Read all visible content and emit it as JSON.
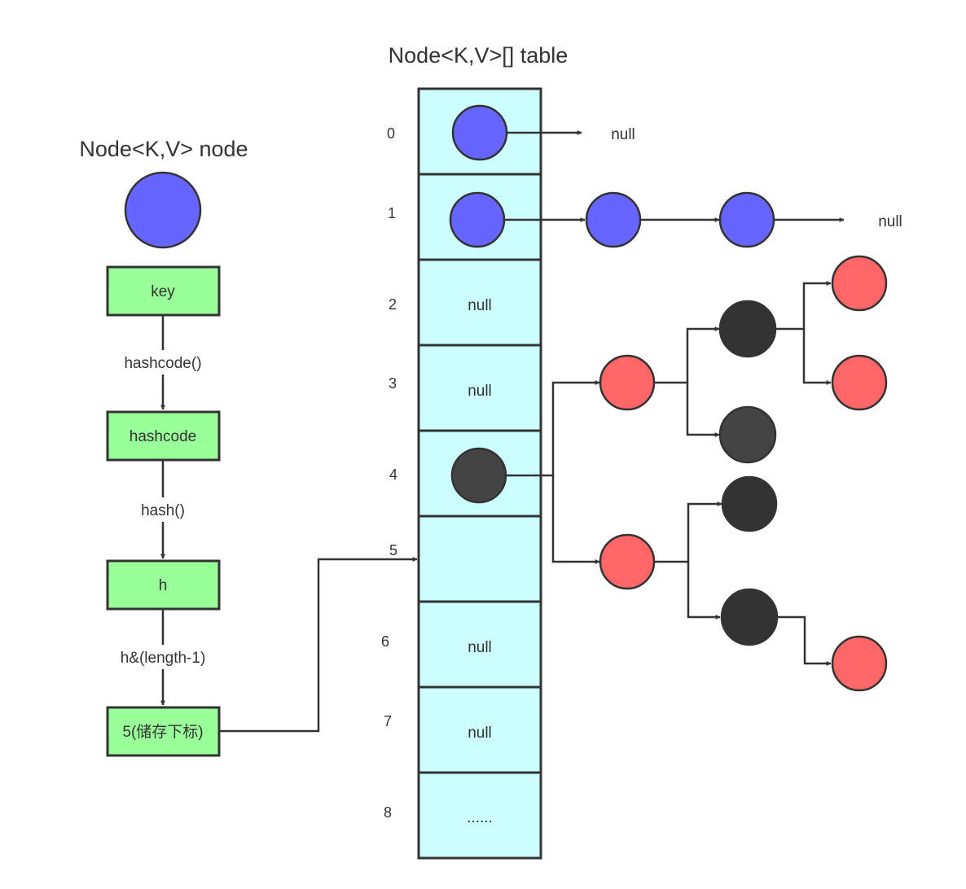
{
  "colors": {
    "blue_node": "#6666ff",
    "red_node": "#ff6666",
    "black_node": "#333333",
    "dark_node": "#444444",
    "green_box": "#99ff99",
    "table_cell": "#ccffff",
    "line": "#333333"
  },
  "left": {
    "title": "Node<K,V> node",
    "key_label": "key",
    "op_hashcode": "hashcode()",
    "hashcode_label": "hashcode",
    "op_hash": "hash()",
    "h_label": "h",
    "op_index": "h&(length-1)",
    "result_label": "5(储存下标)"
  },
  "table": {
    "title": "Node<K,V>[] table",
    "rows": [
      {
        "index": "0",
        "text": "",
        "node": "blue"
      },
      {
        "index": "1",
        "text": "",
        "node": "blue"
      },
      {
        "index": "2",
        "text": "null",
        "node": ""
      },
      {
        "index": "3",
        "text": "null",
        "node": ""
      },
      {
        "index": "4",
        "text": "",
        "node": "dark"
      },
      {
        "index": "5",
        "text": "",
        "node": ""
      },
      {
        "index": "6",
        "text": "null",
        "node": ""
      },
      {
        "index": "7",
        "text": "null",
        "node": ""
      },
      {
        "index": "8",
        "text": "......",
        "node": ""
      }
    ]
  },
  "chains": {
    "row0_end": "null",
    "row1_end": "null"
  }
}
